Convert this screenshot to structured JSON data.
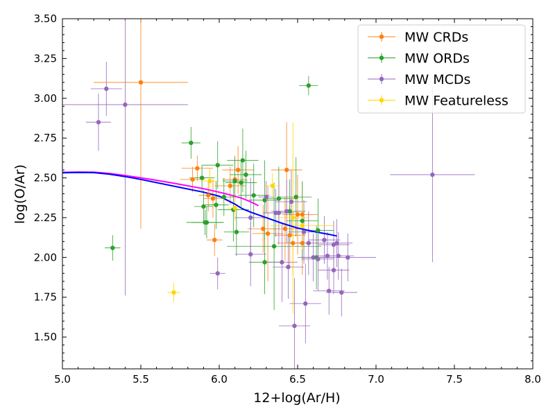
{
  "chart_data": {
    "type": "scatter",
    "xlabel": "12+log(Ar/H)",
    "ylabel": "log(O/Ar)",
    "xlim": [
      5.0,
      8.0
    ],
    "ylim": [
      1.3,
      3.5
    ],
    "xticks": [
      5.0,
      5.5,
      6.0,
      6.5,
      7.0,
      7.5,
      8.0
    ],
    "yticks": [
      1.5,
      1.75,
      2.0,
      2.25,
      2.5,
      2.75,
      3.0,
      3.25,
      3.5
    ],
    "xtick_labels": [
      "5.0",
      "5.5",
      "6.0",
      "6.5",
      "7.0",
      "7.5",
      "8.0"
    ],
    "ytick_labels": [
      "1.50",
      "1.75",
      "2.00",
      "2.25",
      "2.50",
      "2.75",
      "3.00",
      "3.25",
      "3.50"
    ],
    "legend_position": "top-right",
    "series": [
      {
        "name": "MW CRDs",
        "color": "#ff7f0e",
        "points": [
          {
            "x": 5.5,
            "y": 3.1,
            "xerr": 0.3,
            "yerr": 0.92
          },
          {
            "x": 5.83,
            "y": 2.49,
            "xerr": 0.08,
            "yerr": 0.08
          },
          {
            "x": 5.86,
            "y": 2.56,
            "xerr": 0.1,
            "yerr": 0.08
          },
          {
            "x": 5.93,
            "y": 2.39,
            "xerr": 0.06,
            "yerr": 0.1
          },
          {
            "x": 5.96,
            "y": 2.37,
            "xerr": 0.06,
            "yerr": 0.12
          },
          {
            "x": 5.97,
            "y": 2.11,
            "xerr": 0.05,
            "yerr": 0.1
          },
          {
            "x": 6.07,
            "y": 2.45,
            "xerr": 0.1,
            "yerr": 0.12
          },
          {
            "x": 6.1,
            "y": 2.49,
            "xerr": 0.08,
            "yerr": 0.15
          },
          {
            "x": 6.12,
            "y": 2.55,
            "xerr": 0.1,
            "yerr": 0.15
          },
          {
            "x": 6.28,
            "y": 2.18,
            "xerr": 0.1,
            "yerr": 0.15
          },
          {
            "x": 6.31,
            "y": 2.15,
            "xerr": 0.1,
            "yerr": 0.3
          },
          {
            "x": 6.42,
            "y": 2.18,
            "xerr": 0.1,
            "yerr": 0.2
          },
          {
            "x": 6.43,
            "y": 2.55,
            "xerr": 0.1,
            "yerr": 0.3
          },
          {
            "x": 6.45,
            "y": 2.14,
            "xerr": 0.1,
            "yerr": 0.2
          },
          {
            "x": 6.47,
            "y": 2.09,
            "xerr": 0.1,
            "yerr": 0.2
          },
          {
            "x": 6.5,
            "y": 2.27,
            "xerr": 0.1,
            "yerr": 0.25
          },
          {
            "x": 6.53,
            "y": 2.27,
            "xerr": 0.1,
            "yerr": 0.2
          },
          {
            "x": 6.53,
            "y": 2.09,
            "xerr": 0.1,
            "yerr": 0.2
          }
        ]
      },
      {
        "name": "MW ORDs",
        "color": "#2ca02c",
        "points": [
          {
            "x": 5.32,
            "y": 2.06,
            "xerr": 0.05,
            "yerr": 0.08
          },
          {
            "x": 5.82,
            "y": 2.72,
            "xerr": 0.06,
            "yerr": 0.1
          },
          {
            "x": 5.89,
            "y": 2.5,
            "xerr": 0.08,
            "yerr": 0.08
          },
          {
            "x": 5.9,
            "y": 2.32,
            "xerr": 0.06,
            "yerr": 0.1
          },
          {
            "x": 5.91,
            "y": 2.22,
            "xerr": 0.12,
            "yerr": 0.08
          },
          {
            "x": 5.92,
            "y": 2.22,
            "xerr": 0.1,
            "yerr": 0.1
          },
          {
            "x": 5.98,
            "y": 2.33,
            "xerr": 0.08,
            "yerr": 0.15
          },
          {
            "x": 5.99,
            "y": 2.58,
            "xerr": 0.1,
            "yerr": 0.15
          },
          {
            "x": 6.03,
            "y": 2.38,
            "xerr": 0.08,
            "yerr": 0.12
          },
          {
            "x": 6.09,
            "y": 2.3,
            "xerr": 0.1,
            "yerr": 0.2
          },
          {
            "x": 6.1,
            "y": 2.48,
            "xerr": 0.08,
            "yerr": 0.15
          },
          {
            "x": 6.11,
            "y": 2.16,
            "xerr": 0.08,
            "yerr": 0.15
          },
          {
            "x": 6.14,
            "y": 2.47,
            "xerr": 0.1,
            "yerr": 0.15
          },
          {
            "x": 6.15,
            "y": 2.61,
            "xerr": 0.1,
            "yerr": 0.2
          },
          {
            "x": 6.17,
            "y": 2.52,
            "xerr": 0.1,
            "yerr": 0.15
          },
          {
            "x": 6.22,
            "y": 2.39,
            "xerr": 0.1,
            "yerr": 0.2
          },
          {
            "x": 6.29,
            "y": 2.36,
            "xerr": 0.1,
            "yerr": 0.25
          },
          {
            "x": 6.29,
            "y": 1.97,
            "xerr": 0.1,
            "yerr": 0.2
          },
          {
            "x": 6.35,
            "y": 2.07,
            "xerr": 0.3,
            "yerr": 0.4
          },
          {
            "x": 6.38,
            "y": 2.37,
            "xerr": 0.1,
            "yerr": 0.2
          },
          {
            "x": 6.45,
            "y": 2.29,
            "xerr": 0.1,
            "yerr": 0.2
          },
          {
            "x": 6.49,
            "y": 2.38,
            "xerr": 0.1,
            "yerr": 0.25
          },
          {
            "x": 6.53,
            "y": 2.23,
            "xerr": 0.1,
            "yerr": 0.25
          },
          {
            "x": 6.57,
            "y": 3.08,
            "xerr": 0.06,
            "yerr": 0.06
          },
          {
            "x": 6.62,
            "y": 2.0,
            "xerr": 0.1,
            "yerr": 0.2
          },
          {
            "x": 6.63,
            "y": 2.17,
            "xerr": 0.1,
            "yerr": 0.2
          }
        ]
      },
      {
        "name": "MW MCDs",
        "color": "#9467bd",
        "points": [
          {
            "x": 5.23,
            "y": 2.85,
            "xerr": 0.08,
            "yerr": 0.18
          },
          {
            "x": 5.28,
            "y": 3.06,
            "xerr": 0.1,
            "yerr": 0.17
          },
          {
            "x": 5.4,
            "y": 2.96,
            "xerr": 0.4,
            "yerr": 1.2
          },
          {
            "x": 5.99,
            "y": 1.9,
            "xerr": 0.05,
            "yerr": 0.1
          },
          {
            "x": 6.2,
            "y": 2.25,
            "xerr": 0.1,
            "yerr": 0.25
          },
          {
            "x": 6.2,
            "y": 2.02,
            "xerr": 0.1,
            "yerr": 0.2
          },
          {
            "x": 6.3,
            "y": 2.38,
            "xerr": 0.05,
            "yerr": 0.1
          },
          {
            "x": 6.36,
            "y": 2.28,
            "xerr": 0.08,
            "yerr": 0.15
          },
          {
            "x": 6.38,
            "y": 2.28,
            "xerr": 0.1,
            "yerr": 0.2
          },
          {
            "x": 6.4,
            "y": 1.97,
            "xerr": 0.1,
            "yerr": 0.25
          },
          {
            "x": 6.43,
            "y": 2.29,
            "xerr": 0.1,
            "yerr": 0.2
          },
          {
            "x": 6.44,
            "y": 1.94,
            "xerr": 0.1,
            "yerr": 0.2
          },
          {
            "x": 6.46,
            "y": 2.35,
            "xerr": 0.1,
            "yerr": 0.2
          },
          {
            "x": 6.48,
            "y": 1.57,
            "xerr": 0.1,
            "yerr": 0.3
          },
          {
            "x": 6.54,
            "y": 2.16,
            "xerr": 0.1,
            "yerr": 0.2
          },
          {
            "x": 6.55,
            "y": 1.71,
            "xerr": 0.1,
            "yerr": 0.25
          },
          {
            "x": 6.57,
            "y": 2.09,
            "xerr": 0.1,
            "yerr": 0.2
          },
          {
            "x": 6.6,
            "y": 2.0,
            "xerr": 0.1,
            "yerr": 0.15
          },
          {
            "x": 6.63,
            "y": 1.99,
            "xerr": 0.1,
            "yerr": 0.2
          },
          {
            "x": 6.67,
            "y": 2.11,
            "xerr": 0.1,
            "yerr": 0.15
          },
          {
            "x": 6.69,
            "y": 2.01,
            "xerr": 0.1,
            "yerr": 0.15
          },
          {
            "x": 6.7,
            "y": 1.79,
            "xerr": 0.1,
            "yerr": 0.15
          },
          {
            "x": 6.73,
            "y": 2.08,
            "xerr": 0.1,
            "yerr": 0.15
          },
          {
            "x": 6.73,
            "y": 1.92,
            "xerr": 0.1,
            "yerr": 0.15
          },
          {
            "x": 6.75,
            "y": 2.09,
            "xerr": 0.1,
            "yerr": 0.15
          },
          {
            "x": 6.76,
            "y": 2.01,
            "xerr": 0.1,
            "yerr": 0.15
          },
          {
            "x": 6.78,
            "y": 1.78,
            "xerr": 0.1,
            "yerr": 0.15
          },
          {
            "x": 6.82,
            "y": 2.0,
            "xerr": 0.18,
            "yerr": 0.15
          },
          {
            "x": 7.36,
            "y": 2.52,
            "xerr": 0.27,
            "yerr": 0.55
          }
        ]
      },
      {
        "name": "MW Featureless",
        "color": "#ffd700",
        "points": [
          {
            "x": 5.71,
            "y": 1.78,
            "xerr": 0.04,
            "yerr": 0.06
          },
          {
            "x": 5.94,
            "y": 2.48,
            "xerr": 0.06,
            "yerr": 0.08
          },
          {
            "x": 6.1,
            "y": 2.31,
            "xerr": 0.05,
            "yerr": 0.08
          },
          {
            "x": 6.34,
            "y": 2.45,
            "xerr": 0.05,
            "yerr": 0.08
          },
          {
            "x": 6.47,
            "y": 2.25,
            "xerr": 0.1,
            "yerr": 0.6
          },
          {
            "x": 6.53,
            "y": 2.2,
            "xerr": 0.2,
            "yerr": 0.15
          }
        ]
      }
    ],
    "curves": [
      {
        "name": "magenta model",
        "color": "#ff00ff",
        "points": [
          [
            5.0,
            2.535
          ],
          [
            5.1,
            2.537
          ],
          [
            5.2,
            2.536
          ],
          [
            5.3,
            2.528
          ],
          [
            5.4,
            2.515
          ],
          [
            5.5,
            2.5
          ],
          [
            5.6,
            2.485
          ],
          [
            5.7,
            2.468
          ],
          [
            5.8,
            2.45
          ],
          [
            5.9,
            2.432
          ],
          [
            6.0,
            2.41
          ],
          [
            6.05,
            2.398
          ],
          [
            6.1,
            2.385
          ],
          [
            6.15,
            2.37
          ],
          [
            6.2,
            2.35
          ],
          [
            6.25,
            2.325
          ]
        ]
      },
      {
        "name": "blue model",
        "color": "#0000ff",
        "points": [
          [
            5.0,
            2.532
          ],
          [
            5.1,
            2.534
          ],
          [
            5.2,
            2.533
          ],
          [
            5.3,
            2.523
          ],
          [
            5.4,
            2.508
          ],
          [
            5.5,
            2.49
          ],
          [
            5.6,
            2.47
          ],
          [
            5.7,
            2.45
          ],
          [
            5.8,
            2.43
          ],
          [
            5.9,
            2.41
          ],
          [
            6.0,
            2.385
          ],
          [
            6.05,
            2.36
          ],
          [
            6.1,
            2.335
          ],
          [
            6.15,
            2.305
          ],
          [
            6.2,
            2.285
          ],
          [
            6.3,
            2.25
          ],
          [
            6.4,
            2.215
          ],
          [
            6.5,
            2.185
          ],
          [
            6.6,
            2.163
          ],
          [
            6.7,
            2.145
          ],
          [
            6.75,
            2.135
          ]
        ]
      }
    ]
  }
}
